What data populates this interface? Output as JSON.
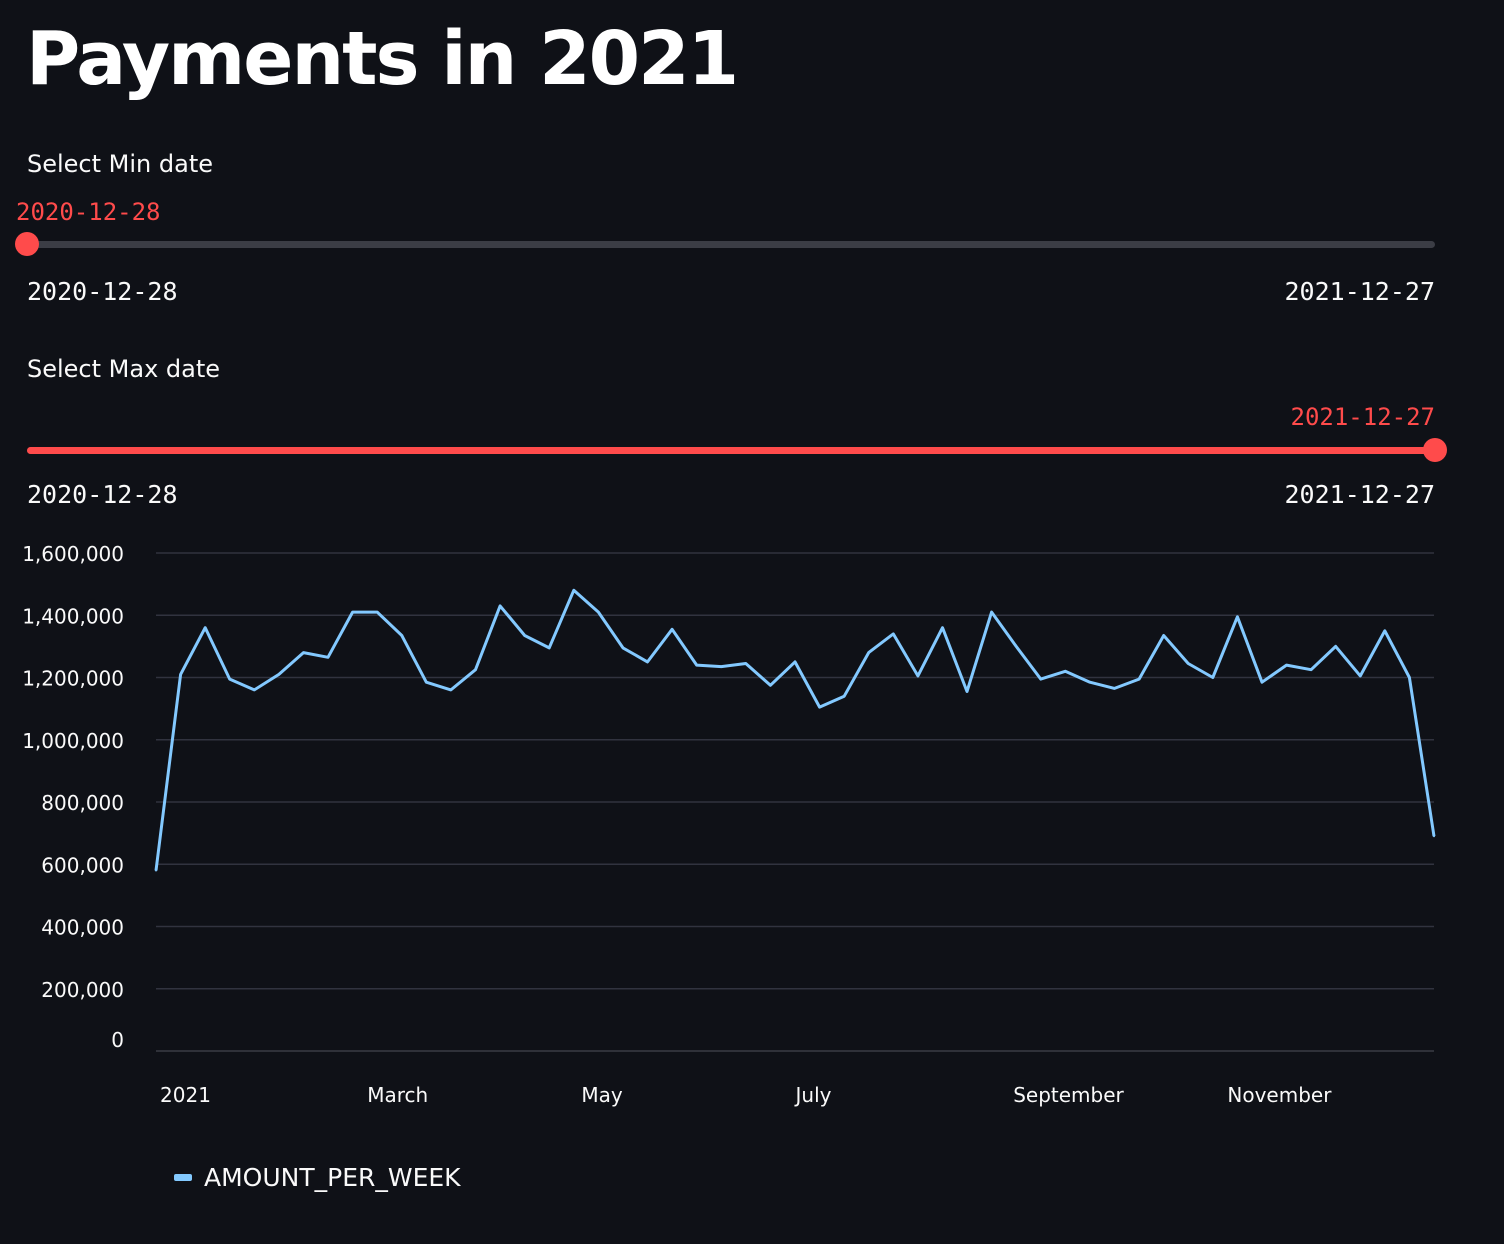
{
  "page": {
    "title": "Payments in 2021"
  },
  "min_slider": {
    "label": "Select Min date",
    "value": "2020-12-28",
    "min": "2020-12-28",
    "max": "2021-12-27",
    "fraction": 0.0
  },
  "max_slider": {
    "label": "Select Max date",
    "value": "2021-12-27",
    "min": "2020-12-28",
    "max": "2021-12-27",
    "fraction": 1.0
  },
  "colors": {
    "accent": "#ff4b4b",
    "series": "#83c9ff",
    "grid": "#31333f",
    "background": "#0f1117"
  },
  "chart_data": {
    "type": "line",
    "x_tick_labels": [
      "2021",
      "March",
      "May",
      "July",
      "September",
      "November"
    ],
    "y_tick_labels": [
      "0",
      "200,000",
      "400,000",
      "600,000",
      "800,000",
      "1,000,000",
      "1,200,000",
      "1,400,000",
      "1,600,000"
    ],
    "ylim": [
      0,
      1600000
    ],
    "grid": true,
    "legend_position": "bottom-left",
    "x": [
      "2020-12-28",
      "2021-01-04",
      "2021-01-11",
      "2021-01-18",
      "2021-01-25",
      "2021-02-01",
      "2021-02-08",
      "2021-02-15",
      "2021-02-22",
      "2021-03-01",
      "2021-03-08",
      "2021-03-15",
      "2021-03-22",
      "2021-03-29",
      "2021-04-05",
      "2021-04-12",
      "2021-04-19",
      "2021-04-26",
      "2021-05-03",
      "2021-05-10",
      "2021-05-17",
      "2021-05-24",
      "2021-05-31",
      "2021-06-07",
      "2021-06-14",
      "2021-06-21",
      "2021-06-28",
      "2021-07-05",
      "2021-07-12",
      "2021-07-19",
      "2021-07-26",
      "2021-08-02",
      "2021-08-09",
      "2021-08-16",
      "2021-08-23",
      "2021-08-30",
      "2021-09-06",
      "2021-09-13",
      "2021-09-20",
      "2021-09-27",
      "2021-10-04",
      "2021-10-11",
      "2021-10-18",
      "2021-10-25",
      "2021-11-01",
      "2021-11-08",
      "2021-11-15",
      "2021-11-22",
      "2021-11-29",
      "2021-12-06",
      "2021-12-13",
      "2021-12-20",
      "2021-12-27"
    ],
    "series": [
      {
        "name": "AMOUNT_PER_WEEK",
        "values": [
          580000,
          1210000,
          1360000,
          1195000,
          1160000,
          1210000,
          1280000,
          1265000,
          1410000,
          1410000,
          1335000,
          1185000,
          1160000,
          1225000,
          1430000,
          1335000,
          1295000,
          1480000,
          1410000,
          1295000,
          1250000,
          1355000,
          1240000,
          1235000,
          1245000,
          1175000,
          1250000,
          1105000,
          1140000,
          1280000,
          1340000,
          1205000,
          1360000,
          1155000,
          1410000,
          1300000,
          1195000,
          1220000,
          1185000,
          1165000,
          1195000,
          1335000,
          1245000,
          1200000,
          1395000,
          1185000,
          1240000,
          1225000,
          1300000,
          1205000,
          1350000,
          1200000,
          690000
        ]
      }
    ]
  },
  "legend": {
    "label": "AMOUNT_PER_WEEK"
  }
}
